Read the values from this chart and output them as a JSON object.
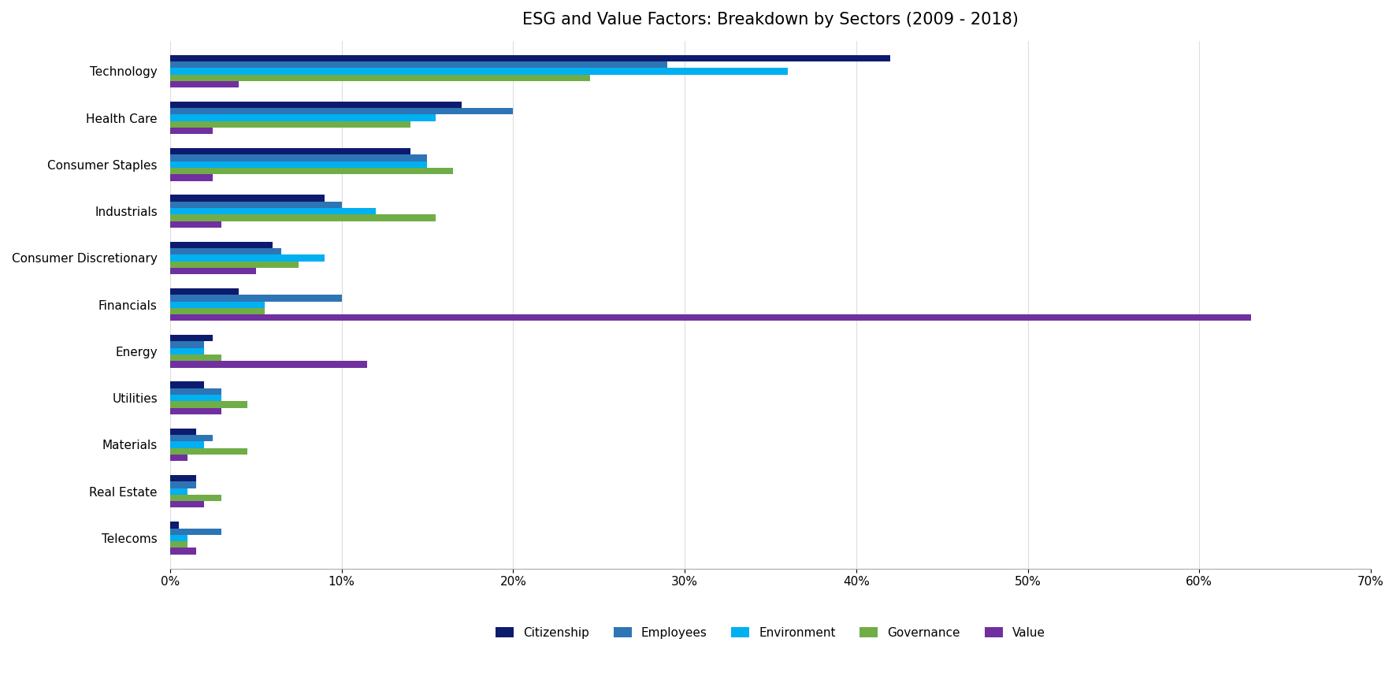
{
  "title": "ESG and Value Factors: Breakdown by Sectors (2009 - 2018)",
  "sectors": [
    "Technology",
    "Health Care",
    "Consumer Staples",
    "Industrials",
    "Consumer Discretionary",
    "Financials",
    "Energy",
    "Utilities",
    "Materials",
    "Real Estate",
    "Telecoms"
  ],
  "factors": [
    "Citizenship",
    "Employees",
    "Environment",
    "Governance",
    "Value"
  ],
  "colors": [
    "#0d1b6e",
    "#2e75b6",
    "#00b0f0",
    "#70ad47",
    "#7030a0"
  ],
  "data": {
    "Technology": [
      0.42,
      0.29,
      0.36,
      0.245,
      0.04
    ],
    "Health Care": [
      0.17,
      0.2,
      0.155,
      0.14,
      0.025
    ],
    "Consumer Staples": [
      0.14,
      0.15,
      0.15,
      0.165,
      0.025
    ],
    "Industrials": [
      0.09,
      0.1,
      0.12,
      0.155,
      0.03
    ],
    "Consumer Discretionary": [
      0.06,
      0.065,
      0.09,
      0.075,
      0.05
    ],
    "Financials": [
      0.04,
      0.1,
      0.055,
      0.055,
      0.63
    ],
    "Energy": [
      0.025,
      0.02,
      0.02,
      0.03,
      0.115
    ],
    "Utilities": [
      0.02,
      0.03,
      0.03,
      0.045,
      0.03
    ],
    "Materials": [
      0.015,
      0.025,
      0.02,
      0.045,
      0.01
    ],
    "Real Estate": [
      0.015,
      0.015,
      0.01,
      0.03,
      0.02
    ],
    "Telecoms": [
      0.005,
      0.03,
      0.01,
      0.01,
      0.015
    ]
  },
  "xlim": [
    0,
    0.7
  ],
  "xticks": [
    0,
    0.1,
    0.2,
    0.3,
    0.4,
    0.5,
    0.6,
    0.7
  ],
  "xtick_labels": [
    "0%",
    "10%",
    "20%",
    "30%",
    "40%",
    "50%",
    "60%",
    "70%"
  ],
  "background_color": "#ffffff",
  "title_fontsize": 15,
  "legend_fontsize": 11,
  "tick_fontsize": 11,
  "bar_height": 0.14,
  "bar_gap": 0.0
}
